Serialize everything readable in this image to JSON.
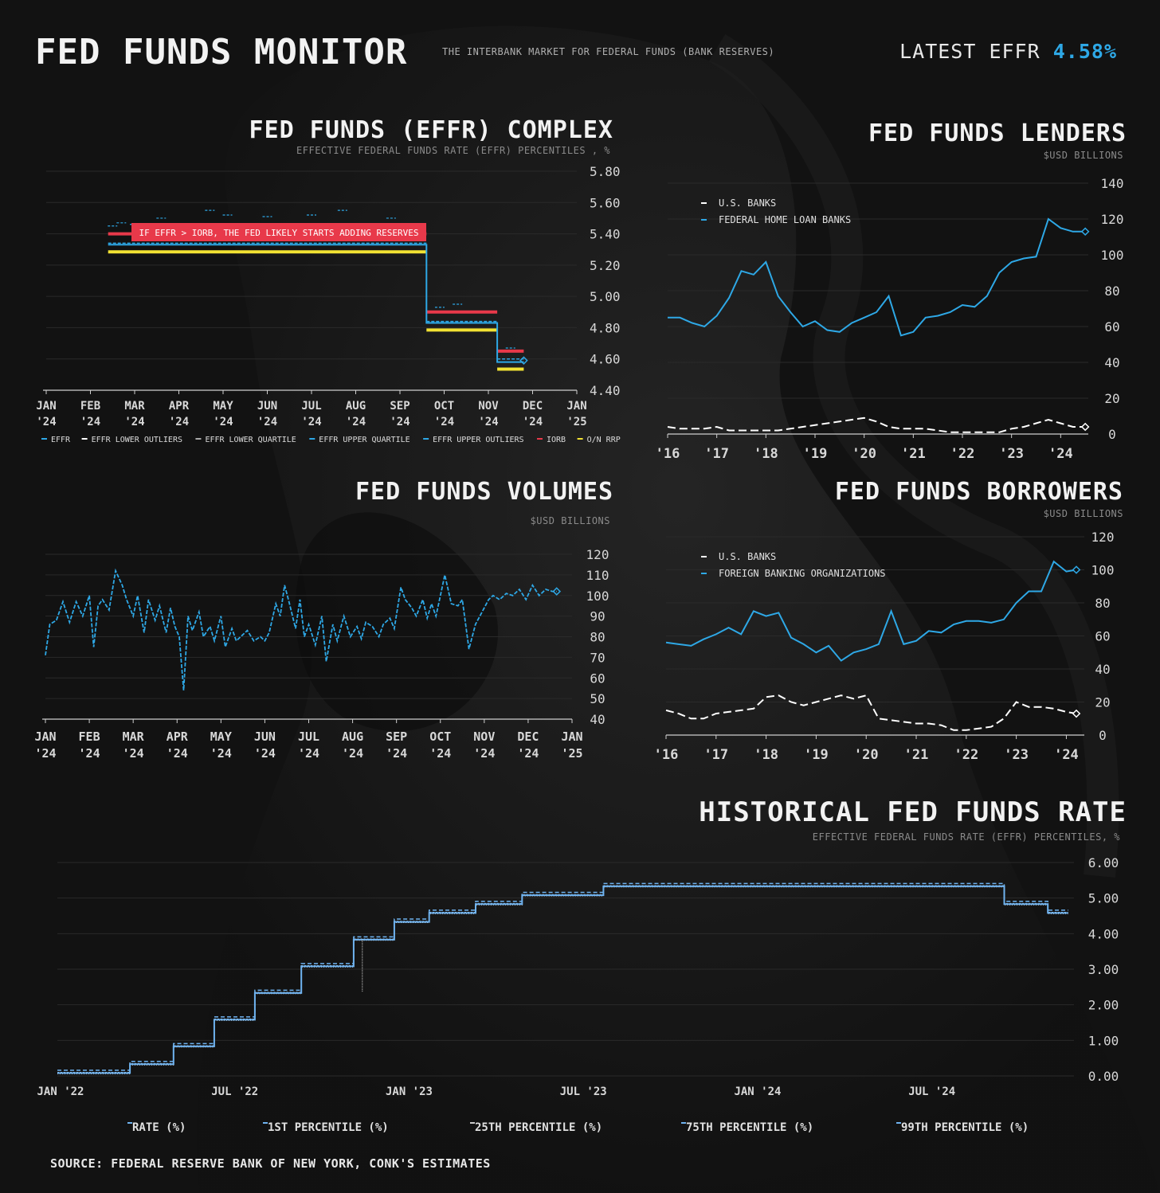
{
  "header": {
    "title": "FED FUNDS MONITOR",
    "subtitle": "THE INTERBANK MARKET FOR FEDERAL FUNDS (BANK RESERVES)",
    "latest_label": "LATEST EFFR",
    "latest_value": "4.58%"
  },
  "complex": {
    "title": "FED FUNDS (EFFR) COMPLEX",
    "subtitle": "EFFECTIVE FEDERAL FUNDS RATE (EFFR) PERCENTILES , %",
    "annotation": "IF EFFR > IORB, THE FED LIKELY STARTS ADDING RESERVES"
  },
  "lenders": {
    "title": "FED FUNDS LENDERS",
    "subtitle": "$USD BILLIONS"
  },
  "volumes": {
    "title": "FED FUNDS VOLUMES",
    "subtitle": "$USD BILLIONS"
  },
  "borrowers": {
    "title": "FED FUNDS BORROWERS",
    "subtitle": "$USD BILLIONS"
  },
  "historical": {
    "title": "HISTORICAL FED FUNDS RATE",
    "subtitle": "EFFECTIVE FEDERAL FUNDS RATE (EFFR) PERCENTILES, %"
  },
  "source": "SOURCE: FEDERAL RESERVE BANK OF NEW YORK, CONK'S ESTIMATES",
  "colors": {
    "blue": "#2ea8e6",
    "light_blue": "#6fb3f0",
    "white": "#ffffff",
    "red": "#e8394a",
    "yellow": "#f2e233",
    "grid": "#2a2a2a",
    "tick_text": "#d8d8d8"
  },
  "chart_data": [
    {
      "id": "complex",
      "type": "line",
      "xlim": [
        0,
        12
      ],
      "ylim": [
        4.4,
        5.8
      ],
      "yticks": [
        "5.80",
        "5.60",
        "5.40",
        "5.20",
        "5.00",
        "4.80",
        "4.60",
        "4.40"
      ],
      "ytick_values": [
        5.8,
        5.6,
        5.4,
        5.2,
        5.0,
        4.8,
        4.6,
        4.4
      ],
      "xticks": [
        [
          "JAN",
          "'24"
        ],
        [
          "FEB",
          "'24"
        ],
        [
          "MAR",
          "'24"
        ],
        [
          "APR",
          "'24"
        ],
        [
          "MAY",
          "'24"
        ],
        [
          "JUN",
          "'24"
        ],
        [
          "JUL",
          "'24"
        ],
        [
          "AUG",
          "'24"
        ],
        [
          "SEP",
          "'24"
        ],
        [
          "OCT",
          "'24"
        ],
        [
          "NOV",
          "'24"
        ],
        [
          "DEC",
          "'24"
        ],
        [
          "JAN",
          "'25"
        ]
      ],
      "legend": [
        {
          "name": "EFFR",
          "color": "#2ea8e6"
        },
        {
          "name": "EFFR LOWER OUTLIERS",
          "color": "#ffffff"
        },
        {
          "name": "EFFR LOWER QUARTILE",
          "color": "#aaaaaa"
        },
        {
          "name": "EFFR UPPER QUARTILE",
          "color": "#2ea8e6"
        },
        {
          "name": "EFFR UPPER OUTLIERS",
          "color": "#2ea8e6"
        },
        {
          "name": "IORB",
          "color": "#e8394a"
        },
        {
          "name": "O/N RRP",
          "color": "#f2e233"
        }
      ],
      "iorb": [
        [
          1.4,
          8.6,
          5.4
        ],
        [
          8.6,
          10.2,
          4.9
        ],
        [
          10.2,
          10.8,
          4.65
        ]
      ],
      "rrp": [
        [
          1.4,
          8.6,
          5.3
        ],
        [
          8.6,
          10.2,
          4.8
        ],
        [
          10.2,
          10.8,
          4.55
        ]
      ],
      "effr": [
        [
          1.4,
          8.6,
          5.33
        ],
        [
          8.6,
          10.2,
          4.83
        ],
        [
          10.2,
          10.8,
          4.58
        ]
      ],
      "upper": [
        [
          1.4,
          8.6,
          5.34
        ],
        [
          8.6,
          10.2,
          4.84
        ],
        [
          10.2,
          10.8,
          4.6
        ]
      ],
      "outliers_high": [
        [
          1.5,
          5.45
        ],
        [
          1.7,
          5.47
        ],
        [
          2.0,
          5.46
        ],
        [
          2.6,
          5.5
        ],
        [
          3.7,
          5.55
        ],
        [
          4.1,
          5.52
        ],
        [
          5.0,
          5.51
        ],
        [
          6.0,
          5.52
        ],
        [
          6.7,
          5.55
        ],
        [
          7.8,
          5.5
        ],
        [
          8.9,
          4.93
        ],
        [
          9.3,
          4.95
        ],
        [
          10.5,
          4.67
        ]
      ],
      "last_marker": [
        10.8,
        4.59
      ]
    },
    {
      "id": "lenders",
      "type": "line",
      "x": [
        2016.0,
        2016.25,
        2016.5,
        2016.75,
        2017.0,
        2017.25,
        2017.5,
        2017.75,
        2018.0,
        2018.25,
        2018.5,
        2018.75,
        2019.0,
        2019.25,
        2019.5,
        2019.75,
        2020.0,
        2020.25,
        2020.5,
        2020.75,
        2021.0,
        2021.25,
        2021.5,
        2021.75,
        2022.0,
        2022.25,
        2022.5,
        2022.75,
        2023.0,
        2023.25,
        2023.5,
        2023.75,
        2024.0,
        2024.25,
        2024.5
      ],
      "xlim": [
        2016.0,
        2024.4
      ],
      "ylim": [
        0,
        140
      ],
      "yticks": [
        0,
        20,
        40,
        60,
        80,
        100,
        120,
        140
      ],
      "xticks": [
        [
          "'16",
          2016.0
        ],
        [
          "'17",
          2017.0
        ],
        [
          "'18",
          2018.0
        ],
        [
          "'19",
          2019.0
        ],
        [
          "'20",
          2020.0
        ],
        [
          "'21",
          2021.0
        ],
        [
          "'22",
          2022.0
        ],
        [
          "'23",
          2023.0
        ],
        [
          "'24",
          2024.0
        ]
      ],
      "series": [
        {
          "name": "U.S. BANKS",
          "color": "#ffffff",
          "dashed": true,
          "values": [
            4,
            3,
            3,
            3,
            4,
            2,
            2,
            2,
            2,
            2,
            3,
            4,
            5,
            6,
            7,
            8,
            9,
            7,
            4,
            3,
            3,
            3,
            2,
            1,
            1,
            1,
            1,
            1,
            3,
            4,
            6,
            8,
            6,
            4,
            4
          ]
        },
        {
          "name": "FEDERAL HOME LOAN BANKS",
          "color": "#2ea8e6",
          "dashed": false,
          "values": [
            65,
            65,
            62,
            60,
            66,
            76,
            91,
            89,
            96,
            77,
            68,
            60,
            63,
            58,
            57,
            62,
            65,
            68,
            77,
            55,
            57,
            65,
            66,
            68,
            72,
            71,
            77,
            90,
            96,
            98,
            99,
            120,
            115,
            113,
            113
          ]
        }
      ]
    },
    {
      "id": "volumes",
      "type": "line",
      "xlim": [
        0,
        12
      ],
      "ylim": [
        40,
        120
      ],
      "yticks": [
        120,
        110,
        100,
        90,
        80,
        70,
        60,
        50,
        40
      ],
      "xticks": [
        [
          "JAN",
          "'24"
        ],
        [
          "FEB",
          "'24"
        ],
        [
          "MAR",
          "'24"
        ],
        [
          "APR",
          "'24"
        ],
        [
          "MAY",
          "'24"
        ],
        [
          "JUN",
          "'24"
        ],
        [
          "JUL",
          "'24"
        ],
        [
          "AUG",
          "'24"
        ],
        [
          "SEP",
          "'24"
        ],
        [
          "OCT",
          "'24"
        ],
        [
          "NOV",
          "'24"
        ],
        [
          "DEC",
          "'24"
        ],
        [
          "JAN",
          "'25"
        ]
      ],
      "series": [
        {
          "name": "",
          "color": "#2ea8e6",
          "dashed": true,
          "x": [
            0,
            0.1,
            0.25,
            0.4,
            0.55,
            0.7,
            0.85,
            1.0,
            1.1,
            1.2,
            1.3,
            1.45,
            1.6,
            1.75,
            1.85,
            2.0,
            2.1,
            2.25,
            2.35,
            2.5,
            2.6,
            2.75,
            2.85,
            2.95,
            3.05,
            3.15,
            3.25,
            3.35,
            3.5,
            3.6,
            3.75,
            3.85,
            4.0,
            4.1,
            4.25,
            4.35,
            4.45,
            4.6,
            4.75,
            4.9,
            5.0,
            5.1,
            5.25,
            5.35,
            5.45,
            5.55,
            5.7,
            5.8,
            5.9,
            6.0,
            6.15,
            6.3,
            6.4,
            6.55,
            6.65,
            6.8,
            6.95,
            7.1,
            7.2,
            7.3,
            7.45,
            7.6,
            7.7,
            7.85,
            7.95,
            8.1,
            8.2,
            8.35,
            8.45,
            8.6,
            8.7,
            8.8,
            8.9,
            9.0,
            9.1,
            9.25,
            9.4,
            9.5,
            9.65,
            9.8,
            9.95,
            10.1,
            10.2,
            10.35,
            10.5,
            10.65,
            10.8,
            10.95,
            11.1,
            11.25,
            11.4,
            11.55,
            11.65
          ],
          "y": [
            71,
            86,
            88,
            97,
            87,
            97,
            90,
            100,
            75,
            95,
            98,
            93,
            112,
            105,
            98,
            90,
            100,
            82,
            98,
            88,
            95,
            82,
            94,
            85,
            80,
            54,
            90,
            83,
            92,
            80,
            85,
            78,
            90,
            75,
            84,
            78,
            80,
            83,
            78,
            80,
            78,
            82,
            96,
            90,
            105,
            97,
            84,
            98,
            80,
            86,
            76,
            90,
            68,
            86,
            78,
            90,
            80,
            85,
            79,
            87,
            85,
            80,
            86,
            89,
            84,
            104,
            98,
            94,
            90,
            98,
            89,
            96,
            90,
            100,
            110,
            96,
            95,
            98,
            74,
            86,
            92,
            98,
            100,
            98,
            101,
            100,
            103,
            98,
            105,
            100,
            103,
            102,
            102
          ]
        }
      ],
      "last_marker": [
        11.65,
        102
      ]
    },
    {
      "id": "borrowers",
      "type": "line",
      "x": [
        2016.0,
        2016.25,
        2016.5,
        2016.75,
        2017.0,
        2017.25,
        2017.5,
        2017.75,
        2018.0,
        2018.25,
        2018.5,
        2018.75,
        2019.0,
        2019.25,
        2019.5,
        2019.75,
        2020.0,
        2020.25,
        2020.5,
        2020.75,
        2021.0,
        2021.25,
        2021.5,
        2021.75,
        2022.0,
        2022.25,
        2022.5,
        2022.75,
        2023.0,
        2023.25,
        2023.5,
        2023.75,
        2024.0,
        2024.2
      ],
      "xlim": [
        2016.0,
        2024.2
      ],
      "ylim": [
        0,
        120
      ],
      "yticks": [
        0,
        20,
        40,
        60,
        80,
        100,
        120
      ],
      "xticks": [
        [
          "'16",
          2016.0
        ],
        [
          "'17",
          2017.0
        ],
        [
          "'18",
          2018.0
        ],
        [
          "'19",
          2019.0
        ],
        [
          "'20",
          2020.0
        ],
        [
          "'21",
          2021.0
        ],
        [
          "'22",
          2022.0
        ],
        [
          "'23",
          2023.0
        ],
        [
          "'24",
          2024.0
        ]
      ],
      "series": [
        {
          "name": "U.S. BANKS",
          "color": "#ffffff",
          "dashed": true,
          "values": [
            15,
            13,
            10,
            10,
            13,
            14,
            15,
            16,
            23,
            24,
            20,
            18,
            20,
            22,
            24,
            22,
            24,
            10,
            9,
            8,
            7,
            7,
            6,
            3,
            3,
            4,
            5,
            10,
            20,
            17,
            17,
            16,
            14,
            13
          ]
        },
        {
          "name": "FOREIGN BANKING ORGANIZATIONS",
          "color": "#2ea8e6",
          "dashed": false,
          "values": [
            56,
            55,
            54,
            58,
            61,
            65,
            61,
            75,
            72,
            74,
            59,
            55,
            50,
            54,
            45,
            50,
            52,
            55,
            75,
            55,
            57,
            63,
            62,
            67,
            69,
            69,
            68,
            70,
            80,
            87,
            87,
            105,
            99,
            100
          ]
        }
      ]
    },
    {
      "id": "historical",
      "type": "line",
      "xlim": [
        0,
        35
      ],
      "ylim": [
        0,
        6
      ],
      "yticks": [
        "6.00",
        "5.00",
        "4.00",
        "3.00",
        "2.00",
        "1.00",
        "0.00"
      ],
      "ytick_values": [
        6,
        5,
        4,
        3,
        2,
        1,
        0
      ],
      "xticks": [
        [
          "JAN '22",
          0
        ],
        [
          "JUL '22",
          6
        ],
        [
          "JAN '23",
          12
        ],
        [
          "JUL '23",
          18
        ],
        [
          "JAN '24",
          24
        ],
        [
          "JUL '24",
          30
        ]
      ],
      "legend": [
        "RATE (%)",
        "1ST PERCENTILE (%)",
        "25TH PERCENTILE (%)",
        "75TH PERCENTILE (%)",
        "99TH PERCENTILE (%)"
      ],
      "steps": [
        [
          0,
          0.08
        ],
        [
          2.5,
          0.33
        ],
        [
          4.0,
          0.83
        ],
        [
          5.4,
          1.58
        ],
        [
          6.8,
          2.33
        ],
        [
          8.4,
          3.08
        ],
        [
          10.2,
          3.83
        ],
        [
          11.6,
          4.33
        ],
        [
          12.8,
          4.58
        ],
        [
          14.4,
          4.83
        ],
        [
          16.0,
          5.08
        ],
        [
          18.8,
          5.33
        ],
        [
          32.6,
          4.83
        ],
        [
          34.1,
          4.58
        ],
        [
          34.8,
          4.58
        ]
      ],
      "dip": [
        10.5,
        2.35
      ]
    }
  ]
}
